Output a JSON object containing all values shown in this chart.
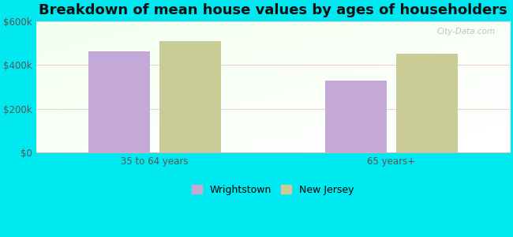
{
  "title": "Breakdown of mean house values by ages of householders",
  "categories": [
    "35 to 64 years",
    "65 years+"
  ],
  "series": {
    "Wrightstown": [
      460000,
      330000
    ],
    "New Jersey": [
      510000,
      450000
    ]
  },
  "bar_colors": {
    "Wrightstown": "#c4a8d8",
    "New Jersey": "#c9cc97"
  },
  "ylim": [
    0,
    600000
  ],
  "yticks": [
    0,
    200000,
    400000,
    600000
  ],
  "ytick_labels": [
    "$0",
    "$200k",
    "$400k",
    "$600k"
  ],
  "background_color": "#00e8f0",
  "title_fontsize": 13,
  "legend_fontsize": 9,
  "tick_fontsize": 8.5,
  "bar_width": 0.13,
  "watermark": "City-Data.com",
  "group_centers": [
    0.25,
    0.75
  ],
  "xlim": [
    0.0,
    1.0
  ]
}
